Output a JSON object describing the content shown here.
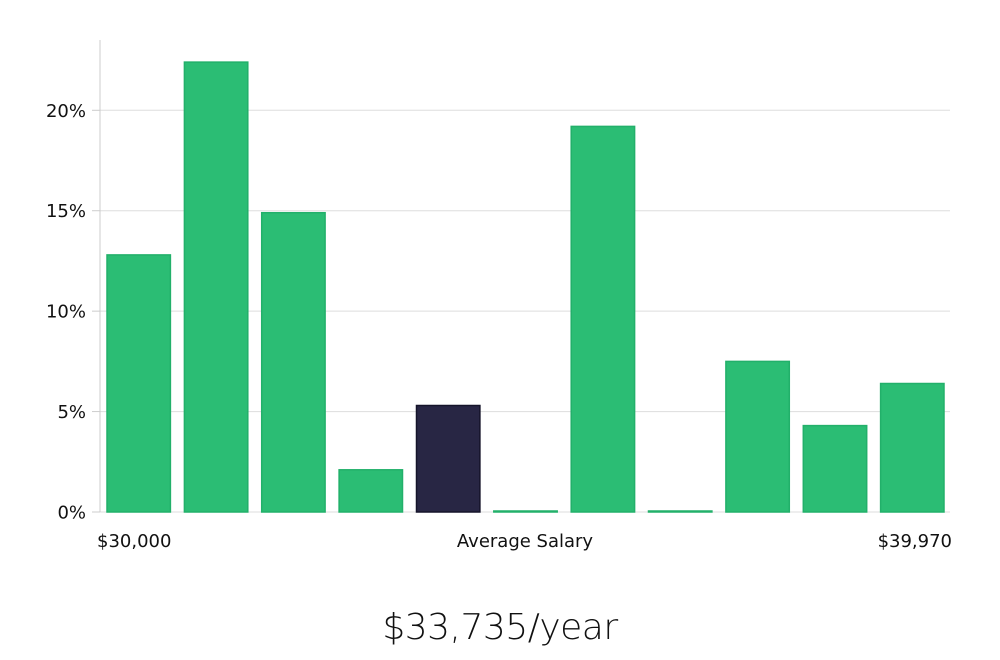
{
  "chart_data": {
    "type": "bar",
    "x_range_labels": {
      "min": "$30,000",
      "center": "Average Salary",
      "max": "$39,970"
    },
    "y_ticks": [
      {
        "value": 0,
        "label": "0%"
      },
      {
        "value": 5,
        "label": "5%"
      },
      {
        "value": 10,
        "label": "10%"
      },
      {
        "value": 15,
        "label": "15%"
      },
      {
        "value": 20,
        "label": "20%"
      }
    ],
    "ylim": [
      0,
      23.5
    ],
    "grid": true,
    "values": [
      12.8,
      22.4,
      14.9,
      2.1,
      5.3,
      0.05,
      19.2,
      0.05,
      7.5,
      4.3,
      6.4
    ],
    "highlight_index": 4,
    "colors": {
      "bar": "#2bbd74",
      "bar_stroke": "#22b06a",
      "highlight": "#282644",
      "highlight_stroke": "#15142a",
      "grid": "#dddddd",
      "axis": "#cccccc"
    }
  },
  "salary_label": "$33,735/year"
}
